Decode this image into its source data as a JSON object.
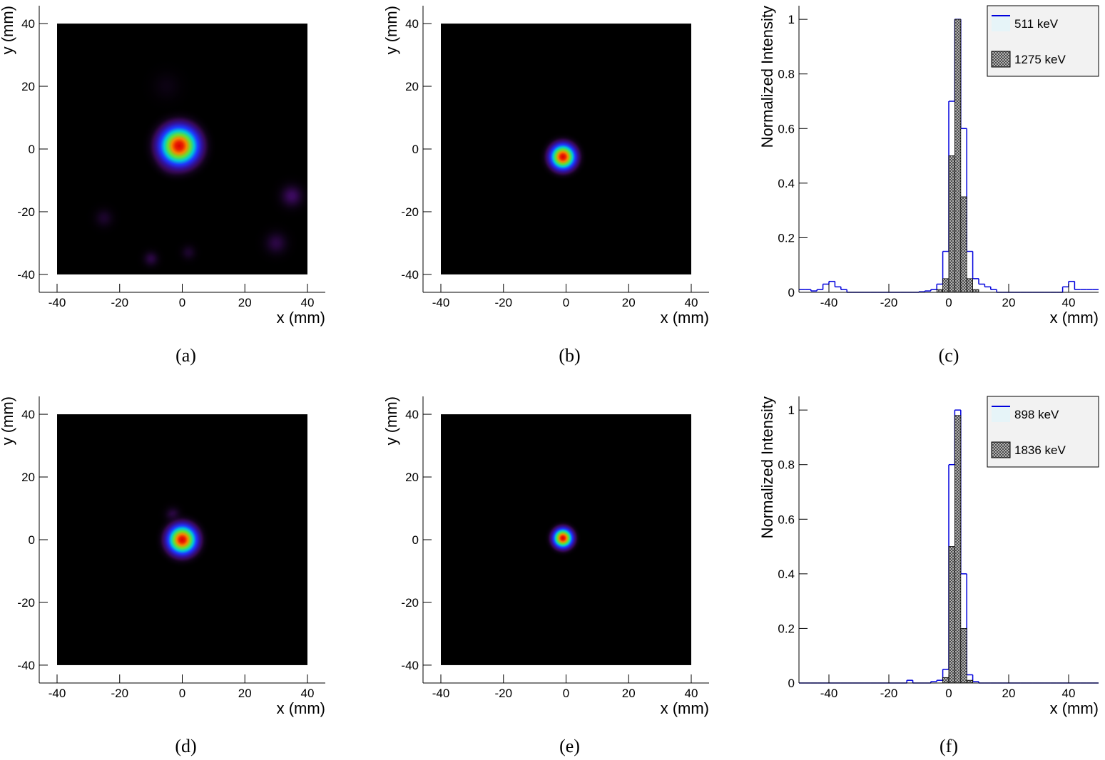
{
  "chart_data": [
    {
      "type": "heatmap",
      "caption": "(a)",
      "xlabel": "x (mm)",
      "ylabel": "y (mm)",
      "xlim": [
        -45.7,
        45.7
      ],
      "ylim": [
        -45.7,
        45.7
      ],
      "xticks": [
        -40,
        -20,
        0,
        20,
        40
      ],
      "yticks": [
        -40,
        -20,
        0,
        20,
        40
      ],
      "extent": [
        -40,
        40,
        -40,
        40
      ],
      "hotspots": {
        "x": [
          -1,
          -3,
          35,
          30,
          -25,
          -10,
          2,
          -5
        ],
        "y": [
          1,
          -3,
          -15,
          -30,
          -22,
          -35,
          -33,
          20
        ],
        "sigma": [
          4,
          2.5,
          3,
          3,
          2.5,
          2,
          2,
          4
        ],
        "intensity": [
          1,
          0.5,
          0.12,
          0.1,
          0.08,
          0.1,
          0.08,
          0.05
        ]
      }
    },
    {
      "type": "heatmap",
      "caption": "(b)",
      "xlabel": "x (mm)",
      "ylabel": "y (mm)",
      "xlim": [
        -45.7,
        45.7
      ],
      "ylim": [
        -45.7,
        45.7
      ],
      "xticks": [
        -40,
        -20,
        0,
        20,
        40
      ],
      "yticks": [
        -40,
        -20,
        0,
        20,
        40
      ],
      "extent": [
        -40,
        40,
        -40,
        40
      ],
      "hotspots": {
        "x": [
          -1
        ],
        "y": [
          -2.5
        ],
        "sigma": [
          2.6
        ],
        "intensity": [
          1
        ]
      }
    },
    {
      "type": "histogram",
      "caption": "(c)",
      "xlabel": "x (mm)",
      "ylabel": "Normalized Intensity",
      "xlim": [
        -50,
        50
      ],
      "ylim": [
        0,
        1.05
      ],
      "xticks": [
        -40,
        -20,
        0,
        20,
        40
      ],
      "yticks": [
        0,
        0.2,
        0.4,
        0.6,
        0.8,
        1
      ],
      "legend": "upper right",
      "bins": [
        -50,
        -48,
        -46,
        -44,
        -42,
        -40,
        -38,
        -36,
        -34,
        -32,
        -30,
        -28,
        -26,
        -24,
        -22,
        -20,
        -18,
        -16,
        -14,
        -12,
        -10,
        -8,
        -6,
        -4,
        -2,
        0,
        2,
        4,
        6,
        8,
        10,
        12,
        14,
        16,
        18,
        20,
        22,
        24,
        26,
        28,
        30,
        32,
        34,
        36,
        38,
        40,
        42,
        44,
        46,
        48,
        50
      ],
      "series": [
        {
          "name": "511 keV",
          "color": "#0000dd",
          "style": "line",
          "values": [
            0.01,
            0.01,
            0.005,
            0.01,
            0.03,
            0.04,
            0.02,
            0.01,
            0,
            0,
            0,
            0,
            0,
            0,
            0,
            0,
            0,
            0,
            0,
            0,
            0.002,
            0.005,
            0.01,
            0.03,
            0.15,
            0.7,
            1,
            0.6,
            0.15,
            0.05,
            0.03,
            0.02,
            0.01,
            0,
            0,
            0,
            0,
            0,
            0,
            0,
            0,
            0,
            0,
            0,
            0.02,
            0.04,
            0.01,
            0.01,
            0.01,
            0.01
          ]
        },
        {
          "name": "1275 keV",
          "color": "#000000",
          "style": "hatched",
          "values": [
            0,
            0,
            0,
            0,
            0,
            0,
            0,
            0,
            0,
            0,
            0,
            0,
            0,
            0,
            0,
            0,
            0,
            0,
            0,
            0,
            0,
            0,
            0,
            0.01,
            0.05,
            0.5,
            1,
            0.35,
            0.05,
            0.01,
            0,
            0,
            0,
            0,
            0,
            0,
            0,
            0,
            0,
            0,
            0,
            0,
            0,
            0,
            0,
            0,
            0,
            0,
            0,
            0
          ]
        }
      ]
    },
    {
      "type": "heatmap",
      "caption": "(d)",
      "xlabel": "x (mm)",
      "ylabel": "y (mm)",
      "xlim": [
        -45.7,
        45.7
      ],
      "ylim": [
        -45.7,
        45.7
      ],
      "xticks": [
        -40,
        -20,
        0,
        20,
        40
      ],
      "yticks": [
        -40,
        -20,
        0,
        20,
        40
      ],
      "extent": [
        -40,
        40,
        -40,
        40
      ],
      "hotspots": {
        "x": [
          0,
          -3
        ],
        "y": [
          0,
          8
        ],
        "sigma": [
          3,
          2
        ],
        "intensity": [
          1,
          0.1
        ]
      }
    },
    {
      "type": "heatmap",
      "caption": "(e)",
      "xlabel": "x (mm)",
      "ylabel": "y (mm)",
      "xlim": [
        -45.7,
        45.7
      ],
      "ylim": [
        -45.7,
        45.7
      ],
      "xticks": [
        -40,
        -20,
        0,
        20,
        40
      ],
      "yticks": [
        -40,
        -20,
        0,
        20,
        40
      ],
      "extent": [
        -40,
        40,
        -40,
        40
      ],
      "hotspots": {
        "x": [
          -1
        ],
        "y": [
          0.5
        ],
        "sigma": [
          2
        ],
        "intensity": [
          1
        ]
      }
    },
    {
      "type": "histogram",
      "caption": "(f)",
      "xlabel": "x (mm)",
      "ylabel": "Normalized Intensity",
      "xlim": [
        -50,
        50
      ],
      "ylim": [
        0,
        1.05
      ],
      "xticks": [
        -40,
        -20,
        0,
        20,
        40
      ],
      "yticks": [
        0,
        0.2,
        0.4,
        0.6,
        0.8,
        1
      ],
      "legend": "upper right",
      "bins": [
        -50,
        -48,
        -46,
        -44,
        -42,
        -40,
        -38,
        -36,
        -34,
        -32,
        -30,
        -28,
        -26,
        -24,
        -22,
        -20,
        -18,
        -16,
        -14,
        -12,
        -10,
        -8,
        -6,
        -4,
        -2,
        0,
        2,
        4,
        6,
        8,
        10,
        12,
        14,
        16,
        18,
        20,
        22,
        24,
        26,
        28,
        30,
        32,
        34,
        36,
        38,
        40,
        42,
        44,
        46,
        48,
        50
      ],
      "series": [
        {
          "name": "898 keV",
          "color": "#0000dd",
          "style": "line",
          "values": [
            0,
            0,
            0,
            0,
            0,
            0,
            0,
            0,
            0,
            0,
            0,
            0,
            0,
            0,
            0,
            0,
            0,
            0,
            0.01,
            0,
            0,
            0,
            0.005,
            0.01,
            0.05,
            0.8,
            1,
            0.4,
            0.03,
            0.005,
            0,
            0,
            0,
            0,
            0,
            0,
            0,
            0,
            0,
            0,
            0,
            0,
            0,
            0,
            0,
            0,
            0,
            0,
            0,
            0
          ]
        },
        {
          "name": "1836 keV",
          "color": "#000000",
          "style": "hatched",
          "values": [
            0,
            0,
            0,
            0,
            0,
            0,
            0,
            0,
            0,
            0,
            0,
            0,
            0,
            0,
            0,
            0,
            0,
            0,
            0,
            0,
            0,
            0,
            0,
            0,
            0.02,
            0.5,
            0.98,
            0.2,
            0.01,
            0,
            0,
            0,
            0,
            0,
            0,
            0,
            0,
            0,
            0,
            0,
            0,
            0,
            0,
            0,
            0,
            0,
            0,
            0,
            0,
            0
          ]
        }
      ]
    }
  ]
}
